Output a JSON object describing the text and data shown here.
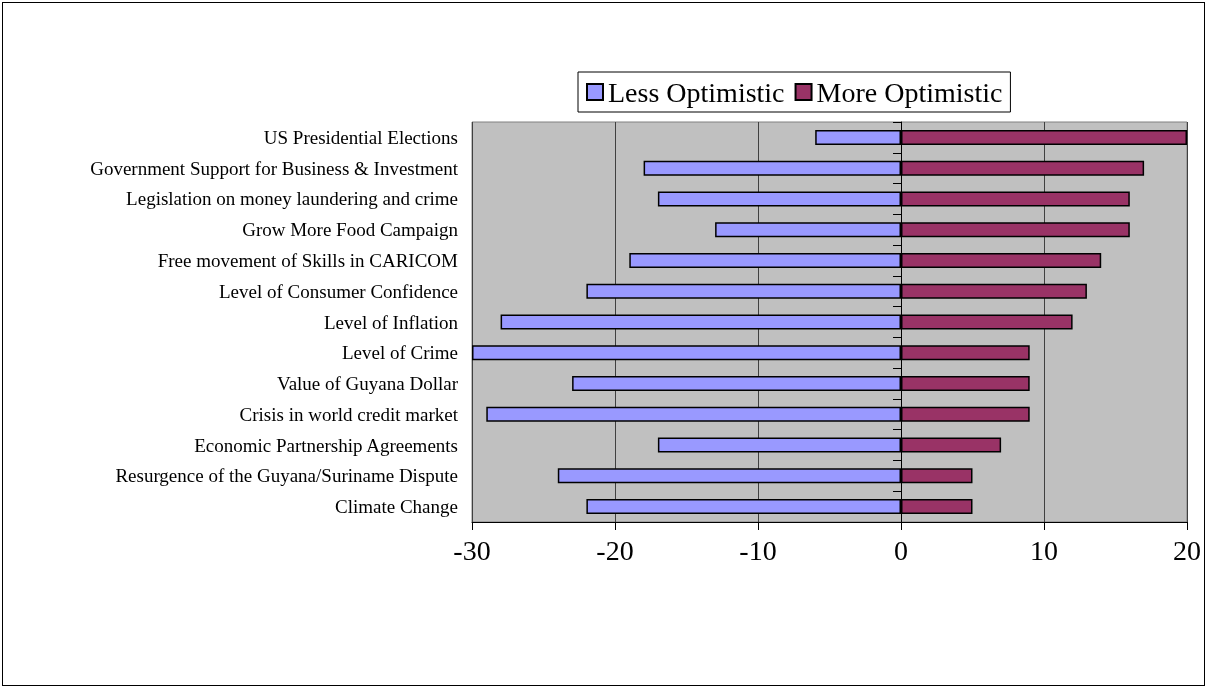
{
  "chart_data": {
    "type": "bar",
    "orientation": "horizontal",
    "stacked": true,
    "categories": [
      "US Presidential Elections",
      "Government Support for Business & Investment",
      "Legislation on money laundering and crime",
      "Grow More Food Campaign",
      "Free movement of Skills in CARICOM",
      "Level of Consumer Confidence",
      "Level of Inflation",
      "Level of Crime",
      "Value of Guyana Dollar",
      "Crisis in world credit market",
      "Economic Partnership Agreements",
      "Resurgence of the Guyana/Suriname Dispute",
      "Climate Change"
    ],
    "series": [
      {
        "name": "Less Optimistic",
        "color": "#9999ff",
        "values": [
          -6,
          -18,
          -17,
          -13,
          -19,
          -22,
          -28,
          -30,
          -23,
          -29,
          -17,
          -24,
          -22
        ]
      },
      {
        "name": "More Optimistic",
        "color": "#993366",
        "values": [
          20,
          17,
          16,
          16,
          14,
          13,
          12,
          9,
          9,
          9,
          7,
          5,
          5
        ]
      }
    ],
    "xlim": [
      -30,
      20
    ],
    "xticks": [
      -30,
      -20,
      -10,
      0,
      10,
      20
    ],
    "grid": "x",
    "legend": "top"
  }
}
